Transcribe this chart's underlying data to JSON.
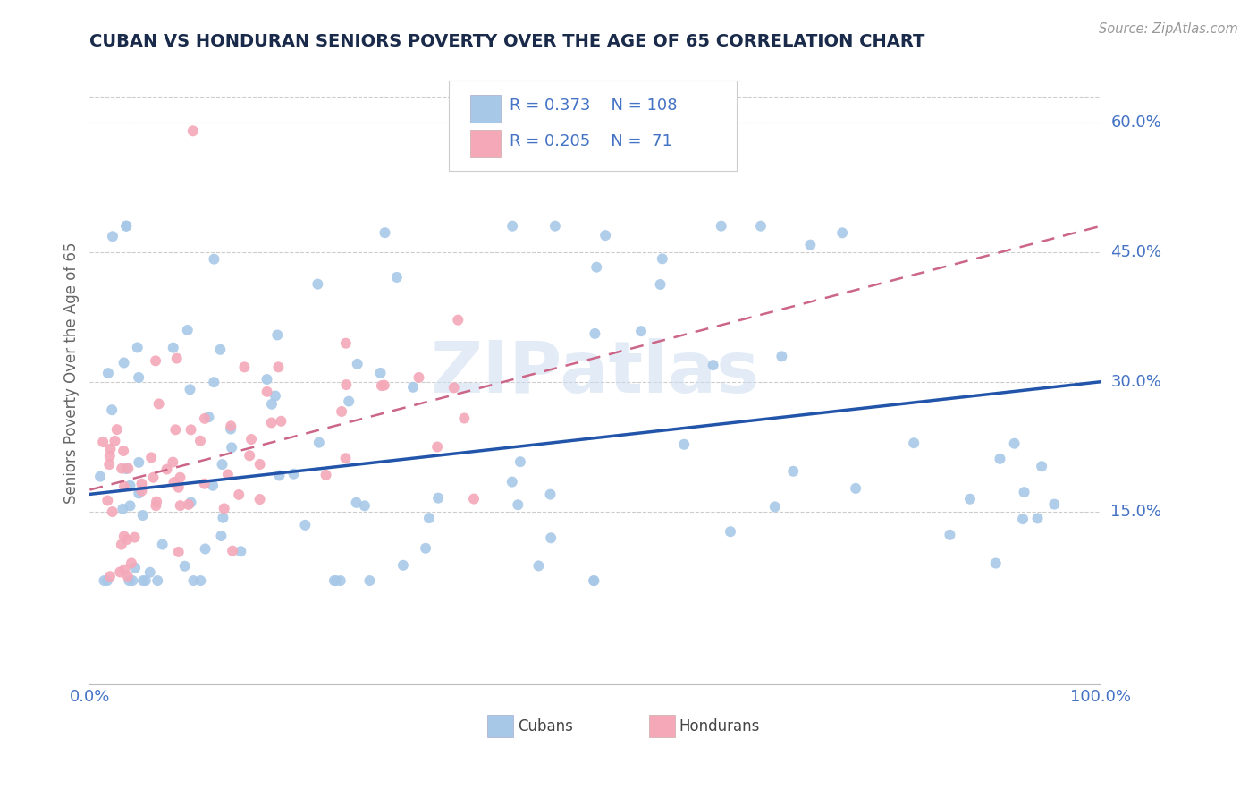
{
  "title": "CUBAN VS HONDURAN SENIORS POVERTY OVER THE AGE OF 65 CORRELATION CHART",
  "source": "Source: ZipAtlas.com",
  "ylabel": "Seniors Poverty Over the Age of 65",
  "xlim": [
    0,
    1.0
  ],
  "ylim": [
    -0.05,
    0.67
  ],
  "ytick_labels": [
    "15.0%",
    "30.0%",
    "45.0%",
    "60.0%"
  ],
  "ytick_positions": [
    0.15,
    0.3,
    0.45,
    0.6
  ],
  "cuban_color": "#a8c8e8",
  "honduran_color": "#f4a8b8",
  "cuban_line_color": "#2255aa",
  "honduran_line_color": "#cc6688",
  "cuban_R": 0.373,
  "cuban_N": 108,
  "honduran_R": 0.205,
  "honduran_N": 71,
  "legend_label_cuban": "Cubans",
  "legend_label_honduran": "Hondurans",
  "watermark": "ZIPatlas",
  "title_color": "#1a2a4a",
  "tick_label_color": "#4472c4",
  "grid_color": "#cccccc",
  "background_color": "#ffffff",
  "cuban_line_x0": 0.0,
  "cuban_line_y0": 0.17,
  "cuban_line_x1": 1.0,
  "cuban_line_y1": 0.3,
  "honduran_line_x0": 0.0,
  "honduran_line_y0": 0.175,
  "honduran_line_x1": 1.0,
  "honduran_line_y1": 0.48
}
